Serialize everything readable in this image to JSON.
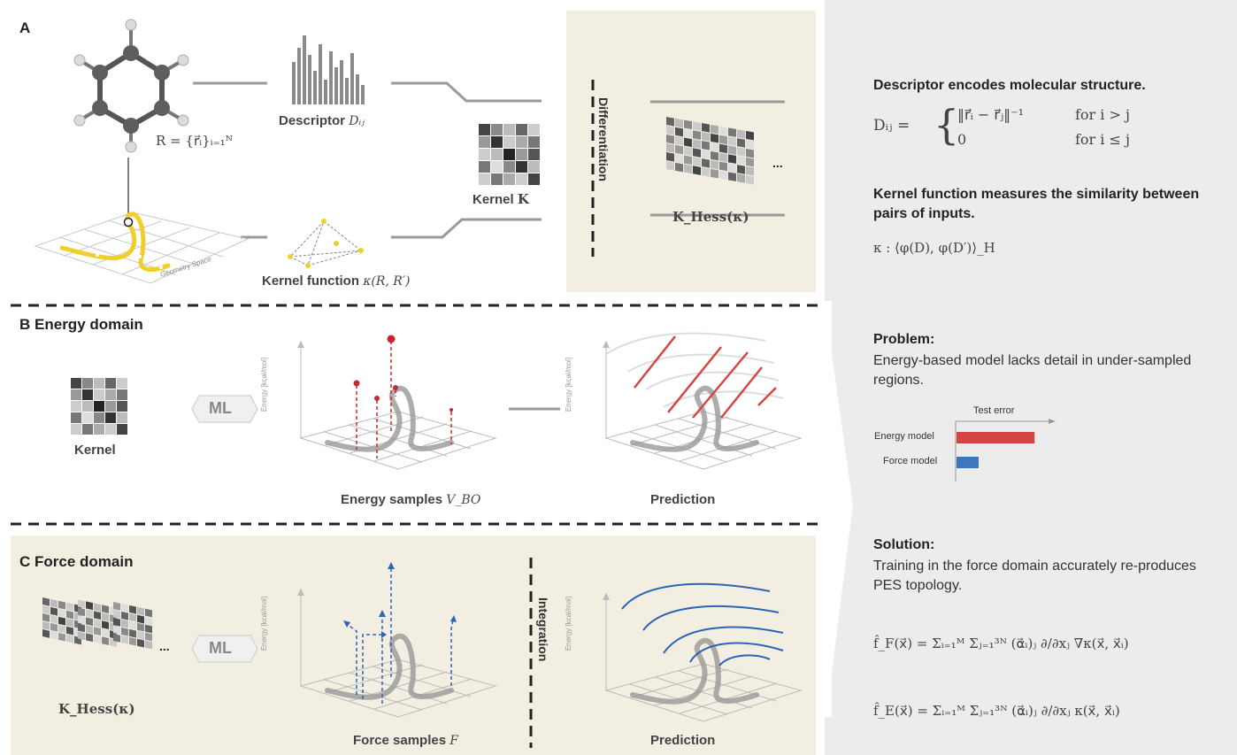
{
  "panelA": {
    "label": "A",
    "molecule_formula": "R = {r⃗ᵢ}ᵢ₌₁ᴺ",
    "descriptor_caption": "Descriptor",
    "descriptor_symbol": "Dᵢⱼ",
    "kernel_caption": "Kernel",
    "kernel_symbol": "K",
    "geometry_label": "Geometry Space",
    "kernel_function_caption": "Kernel function",
    "kernel_function_symbol": "κ(R, R′)",
    "differentiation_label": "Differentiation",
    "hessian_symbol": "K_Hess(κ)",
    "ellipsis": "..."
  },
  "panelB": {
    "label": "B",
    "title": "Energy domain",
    "kernel_caption": "Kernel",
    "ml_label": "ML",
    "yaxis_label": "Energy [kcal/mol]",
    "samples_caption": "Energy samples",
    "samples_symbol": "V_BO",
    "prediction_caption": "Prediction"
  },
  "panelC": {
    "label": "C",
    "title": "Force domain",
    "hessian_symbol": "K_Hess(κ)",
    "ellipsis": "...",
    "ml_label": "ML",
    "yaxis_label": "Energy [kcal/mol]",
    "samples_caption": "Force samples",
    "samples_symbol": "F",
    "integration_label": "Integration",
    "prediction_caption": "Prediction"
  },
  "sidebar": {
    "descriptor_heading": "Descriptor encodes molecular structure.",
    "descriptor_eq_lhs": "Dᵢⱼ =",
    "descriptor_case1": "‖r⃗ᵢ − r⃗ⱼ‖⁻¹",
    "descriptor_cond1": "for i > j",
    "descriptor_case2": "0",
    "descriptor_cond2": "for i ≤ j",
    "kernel_heading": "Kernel function measures the similarity between pairs of inputs.",
    "kernel_eq": "κ : ⟨φ(D), φ(D′)⟩_H",
    "problem_heading": "Problem:",
    "problem_text": "Energy-based model lacks detail in under-sampled regions.",
    "test_error_label": "Test error",
    "solution_heading": "Solution:",
    "solution_text": "Training in the force domain accurately re-produces PES topology.",
    "fF_eq": "f̂_F(x⃗) = Σᵢ₌₁ᴹ Σⱼ₌₁³ᴺ (α⃗ᵢ)ⱼ ∂/∂xⱼ ∇κ(x⃗, x⃗ᵢ)",
    "fE_eq": "f̂_E(x⃗) = Σᵢ₌₁ᴹ Σⱼ₌₁³ᴺ (α⃗ᵢ)ⱼ ∂/∂xⱼ κ(x⃗, x⃗ᵢ)"
  },
  "chart_data": {
    "type": "bar",
    "title": "Test error",
    "categories": [
      "Energy model",
      "Force model"
    ],
    "values": [
      3.0,
      0.85
    ],
    "colors": [
      "#d64545",
      "#3f77bf"
    ]
  },
  "colors": {
    "panel_bg": "#f2eee1",
    "side_bg": "#ececec",
    "energy_red": "#c8282d",
    "force_blue": "#2d63b8",
    "curve_yellow": "#f0cf2a"
  }
}
